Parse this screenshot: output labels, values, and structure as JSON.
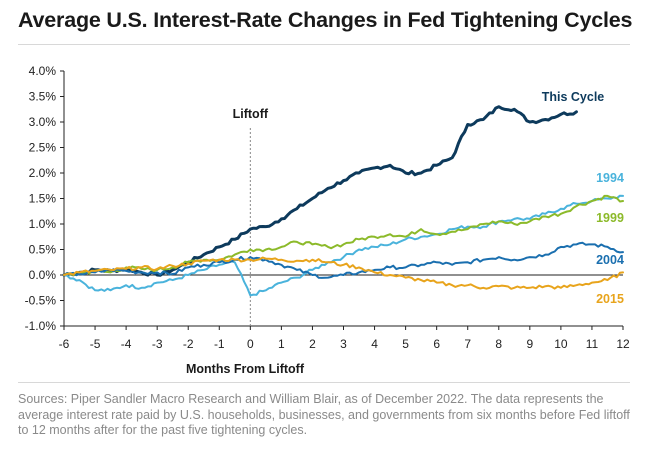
{
  "title": "Average U.S. Interest-Rate Changes in Fed Tightening Cycles",
  "source": "Sources: Piper Sandler Macro Research and William Blair, as of December 2022. The data represents the average interest rate paid by U.S. households, businesses, and governments from six months before Fed liftoff to 12 months after for the past five tightening cycles.",
  "colors": {
    "this_cycle": "#0d3a5c",
    "1994": "#4ab3dc",
    "1999": "#8cba2a",
    "2004": "#1a6faf",
    "2015": "#e8a41c"
  },
  "chart_data": {
    "type": "line",
    "xlabel": "Months From Liftoff",
    "ylabel": "",
    "xlim": [
      -6,
      12
    ],
    "ylim": [
      -1.0,
      4.0
    ],
    "x_ticks": [
      "-6",
      "-5",
      "-4",
      "-3",
      "-2",
      "-1",
      "0",
      "1",
      "2",
      "3",
      "4",
      "5",
      "6",
      "7",
      "8",
      "9",
      "10",
      "11",
      "12"
    ],
    "y_ticks": [
      "-1.0%",
      "-0.5%",
      "0.0%",
      "0.5%",
      "1.0%",
      "1.5%",
      "2.0%",
      "2.5%",
      "3.0%",
      "3.5%",
      "4.0%"
    ],
    "grid": false,
    "annotation": {
      "label": "Liftoff",
      "x": 0
    },
    "series": [
      {
        "name": "This Cycle",
        "x": [
          -6,
          -5.5,
          -5,
          -4.5,
          -4,
          -3.5,
          -3,
          -2.5,
          -2,
          -1.5,
          -1,
          -0.5,
          0,
          0.5,
          1,
          1.5,
          2,
          2.5,
          3,
          3.5,
          4,
          4.5,
          5,
          5.5,
          6,
          6.5,
          7,
          7.5,
          8,
          8.5,
          9,
          9.5,
          10,
          10.5
        ],
        "y": [
          0.0,
          0.05,
          0.1,
          0.08,
          0.12,
          0.05,
          0.0,
          0.1,
          0.25,
          0.4,
          0.55,
          0.7,
          0.9,
          0.95,
          1.1,
          1.3,
          1.5,
          1.7,
          1.85,
          2.0,
          2.1,
          2.15,
          2.0,
          2.0,
          2.15,
          2.3,
          2.95,
          3.05,
          3.3,
          3.25,
          3.0,
          3.05,
          3.15,
          3.2
        ]
      },
      {
        "name": "1994",
        "x": [
          -6,
          -5.5,
          -5,
          -4.5,
          -4,
          -3.5,
          -3,
          -2.5,
          -2,
          -1.5,
          -1,
          -0.5,
          0,
          0.5,
          1,
          1.5,
          2,
          2.5,
          3,
          3.5,
          4,
          4.5,
          5,
          5.5,
          6,
          6.5,
          7,
          7.5,
          8,
          8.5,
          9,
          9.5,
          10,
          10.5,
          11,
          11.5,
          12
        ],
        "y": [
          0.0,
          -0.1,
          -0.3,
          -0.3,
          -0.2,
          -0.25,
          -0.15,
          -0.1,
          0.0,
          0.1,
          0.2,
          0.25,
          -0.4,
          -0.3,
          -0.15,
          -0.05,
          0.1,
          0.25,
          0.35,
          0.5,
          0.55,
          0.6,
          0.7,
          0.75,
          0.8,
          0.9,
          0.95,
          0.95,
          1.05,
          1.1,
          1.1,
          1.2,
          1.3,
          1.4,
          1.45,
          1.5,
          1.55
        ]
      },
      {
        "name": "1999",
        "x": [
          -6,
          -5.5,
          -5,
          -4.5,
          -4,
          -3.5,
          -3,
          -2.5,
          -2,
          -1.5,
          -1,
          -0.5,
          0,
          0.5,
          1,
          1.5,
          2,
          2.5,
          3,
          3.5,
          4,
          4.5,
          5,
          5.5,
          6,
          6.5,
          7,
          7.5,
          8,
          8.5,
          9,
          9.5,
          10,
          10.5,
          11,
          11.5,
          12
        ],
        "y": [
          0.0,
          0.02,
          0.08,
          0.05,
          0.15,
          0.12,
          0.1,
          0.15,
          0.25,
          0.3,
          0.3,
          0.4,
          0.5,
          0.5,
          0.55,
          0.65,
          0.6,
          0.55,
          0.6,
          0.7,
          0.75,
          0.8,
          0.75,
          0.9,
          0.8,
          0.85,
          0.9,
          1.0,
          1.05,
          1.0,
          1.05,
          1.15,
          1.2,
          1.35,
          1.45,
          1.55,
          1.45
        ]
      },
      {
        "name": "2004",
        "x": [
          -6,
          -5.5,
          -5,
          -4.5,
          -4,
          -3.5,
          -3,
          -2.5,
          -2,
          -1.5,
          -1,
          -0.5,
          0,
          0.5,
          1,
          1.5,
          2,
          2.5,
          3,
          3.5,
          4,
          4.5,
          5,
          5.5,
          6,
          6.5,
          7,
          7.5,
          8,
          8.5,
          9,
          9.5,
          10,
          10.5,
          11,
          11.5,
          12
        ],
        "y": [
          0.0,
          0.02,
          0.05,
          0.1,
          0.08,
          0.05,
          0.05,
          0.02,
          0.15,
          0.2,
          0.25,
          0.3,
          0.35,
          0.3,
          0.2,
          0.1,
          0.0,
          -0.05,
          0.0,
          0.05,
          0.1,
          0.15,
          0.15,
          0.2,
          0.25,
          0.2,
          0.25,
          0.3,
          0.35,
          0.3,
          0.35,
          0.4,
          0.55,
          0.6,
          0.6,
          0.55,
          0.45
        ]
      },
      {
        "name": "2015",
        "x": [
          -6,
          -5.5,
          -5,
          -4.5,
          -4,
          -3.5,
          -3,
          -2.5,
          -2,
          -1.5,
          -1,
          -0.5,
          0,
          0.5,
          1,
          1.5,
          2,
          2.5,
          3,
          3.5,
          4,
          4.5,
          5,
          5.5,
          6,
          6.5,
          7,
          7.5,
          8,
          8.5,
          9,
          9.5,
          10,
          10.5,
          11,
          11.5,
          12
        ],
        "y": [
          0.0,
          0.05,
          0.08,
          0.1,
          0.12,
          0.15,
          0.12,
          0.18,
          0.22,
          0.28,
          0.3,
          0.3,
          0.3,
          0.32,
          0.3,
          0.28,
          0.3,
          0.25,
          0.2,
          0.15,
          0.05,
          0.0,
          -0.05,
          -0.1,
          -0.15,
          -0.2,
          -0.2,
          -0.25,
          -0.22,
          -0.25,
          -0.25,
          -0.22,
          -0.25,
          -0.2,
          -0.15,
          -0.1,
          0.05
        ]
      }
    ]
  }
}
